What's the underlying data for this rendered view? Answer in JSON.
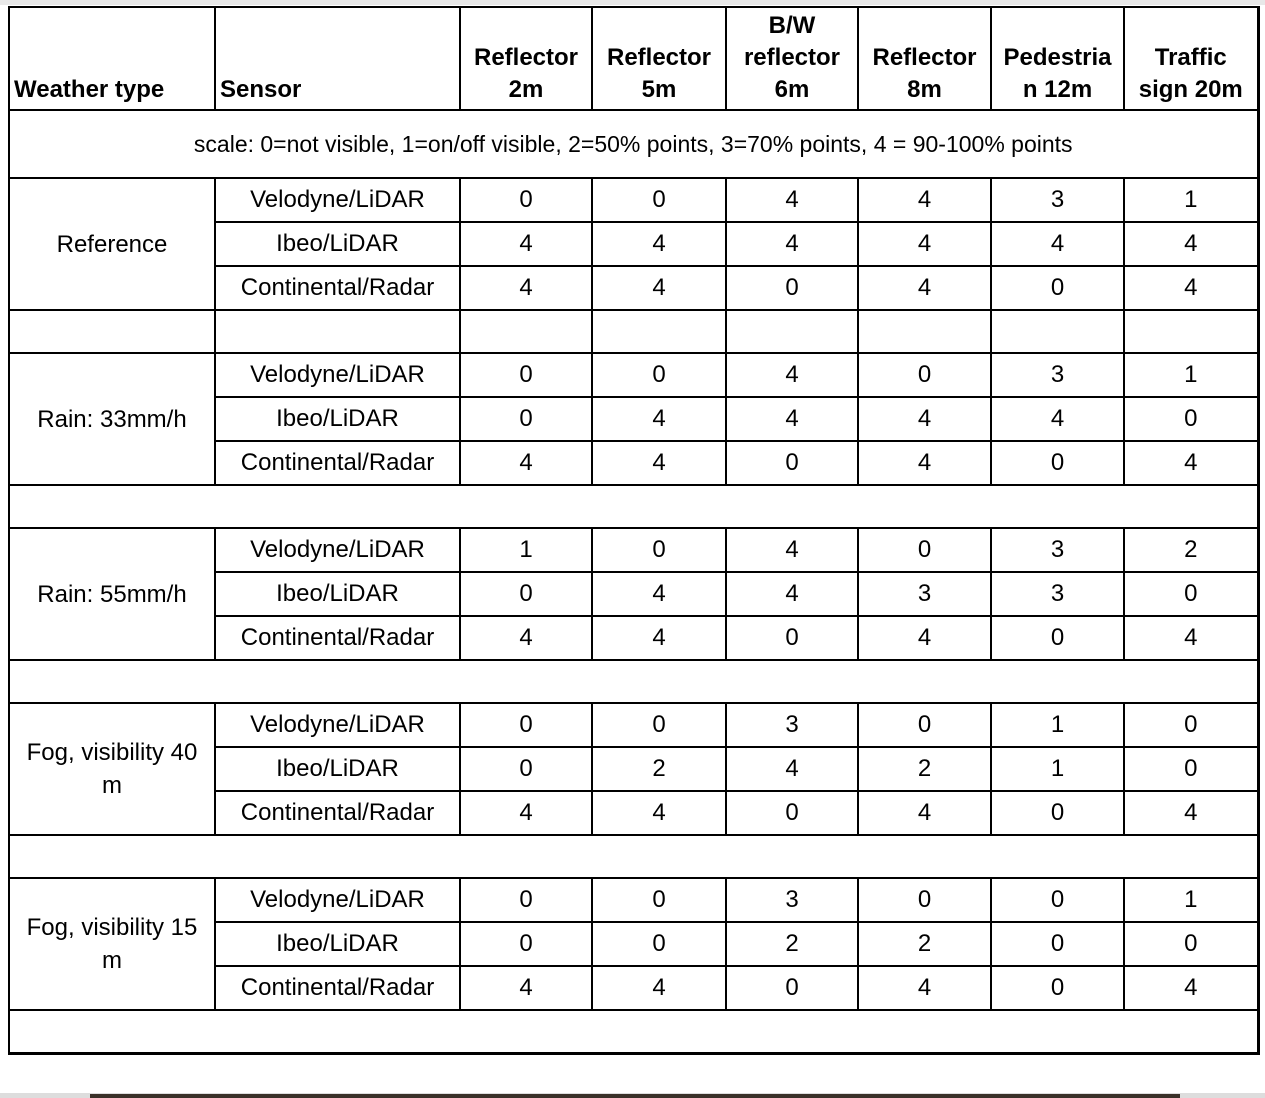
{
  "headers": [
    "Weather type",
    "Sensor",
    "Reflector 2m",
    "Reflector 5m",
    "B/W reflector 6m",
    "Reflector 8m",
    "Pedestria n 12m",
    "Traffic sign 20m"
  ],
  "header_lines": [
    [
      "Weather type"
    ],
    [
      "Sensor"
    ],
    [
      "Reflector",
      "2m"
    ],
    [
      "Reflector",
      "5m"
    ],
    [
      "B/W",
      "reflector",
      "6m"
    ],
    [
      "Reflector",
      "8m"
    ],
    [
      "Pedestria",
      "n 12m"
    ],
    [
      "Traffic",
      "sign 20m"
    ]
  ],
  "scale": "scale: 0=not visible, 1=on/off visible, 2=50% points, 3=70% points, 4 = 90-100% points",
  "groups": [
    {
      "weather": "Reference",
      "rows": [
        {
          "sensor": "Velodyne/LiDAR",
          "values": [
            "0",
            "0",
            "4",
            "4",
            "3",
            "1"
          ]
        },
        {
          "sensor": "Ibeo/LiDAR",
          "values": [
            "4",
            "4",
            "4",
            "4",
            "4",
            "4"
          ]
        },
        {
          "sensor": "Continental/Radar",
          "values": [
            "4",
            "4",
            "0",
            "4",
            "0",
            "4"
          ]
        }
      ]
    },
    {
      "weather": "Rain: 33mm/h",
      "rows": [
        {
          "sensor": "Velodyne/LiDAR",
          "values": [
            "0",
            "0",
            "4",
            "0",
            "3",
            "1"
          ]
        },
        {
          "sensor": "Ibeo/LiDAR",
          "values": [
            "0",
            "4",
            "4",
            "4",
            "4",
            "0"
          ]
        },
        {
          "sensor": "Continental/Radar",
          "values": [
            "4",
            "4",
            "0",
            "4",
            "0",
            "4"
          ]
        }
      ]
    },
    {
      "weather": "Rain: 55mm/h",
      "rows": [
        {
          "sensor": "Velodyne/LiDAR",
          "values": [
            "1",
            "0",
            "4",
            "0",
            "3",
            "2"
          ]
        },
        {
          "sensor": "Ibeo/LiDAR",
          "values": [
            "0",
            "4",
            "4",
            "3",
            "3",
            "0"
          ]
        },
        {
          "sensor": "Continental/Radar",
          "values": [
            "4",
            "4",
            "0",
            "4",
            "0",
            "4"
          ]
        }
      ]
    },
    {
      "weather": "Fog, visibility 40 m",
      "rows": [
        {
          "sensor": "Velodyne/LiDAR",
          "values": [
            "0",
            "0",
            "3",
            "0",
            "1",
            "0"
          ]
        },
        {
          "sensor": "Ibeo/LiDAR",
          "values": [
            "0",
            "2",
            "4",
            "2",
            "1",
            "0"
          ]
        },
        {
          "sensor": "Continental/Radar",
          "values": [
            "4",
            "4",
            "0",
            "4",
            "0",
            "4"
          ]
        }
      ]
    },
    {
      "weather": "Fog, visibility 15 m",
      "rows": [
        {
          "sensor": "Velodyne/LiDAR",
          "values": [
            "0",
            "0",
            "3",
            "0",
            "0",
            "1"
          ]
        },
        {
          "sensor": "Ibeo/LiDAR",
          "values": [
            "0",
            "0",
            "2",
            "2",
            "0",
            "0"
          ]
        },
        {
          "sensor": "Continental/Radar",
          "values": [
            "4",
            "4",
            "0",
            "4",
            "0",
            "4"
          ]
        }
      ]
    }
  ]
}
